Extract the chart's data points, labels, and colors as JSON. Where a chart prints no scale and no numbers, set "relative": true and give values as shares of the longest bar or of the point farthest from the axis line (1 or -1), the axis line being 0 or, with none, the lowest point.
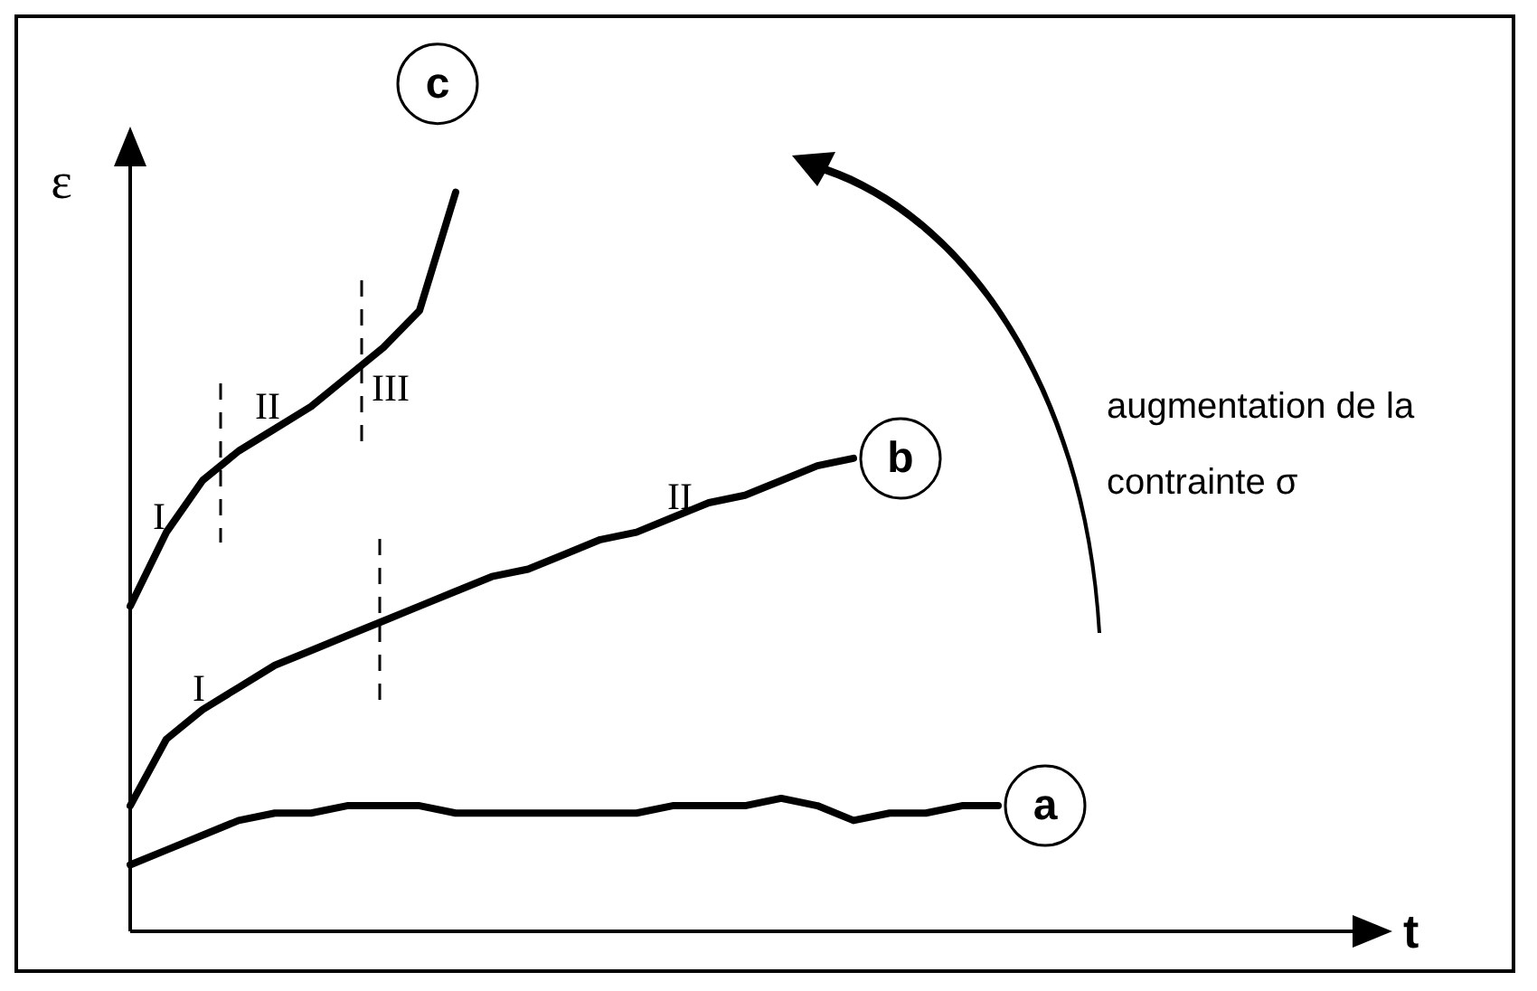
{
  "chart_data": {
    "type": "line",
    "relative": true,
    "xlabel": "t",
    "ylabel": "ε",
    "categories": [
      null,
      null,
      null,
      null,
      null,
      null,
      null,
      null,
      null,
      null,
      null,
      null,
      null,
      null,
      null,
      null,
      null,
      null,
      null,
      null,
      null,
      null,
      null,
      null,
      null,
      null,
      null,
      null,
      null,
      null,
      null,
      null,
      null,
      null,
      null
    ],
    "series": [
      {
        "name": "a",
        "color": "#000000",
        "values": [
          0.09,
          0.11,
          0.13,
          0.15,
          0.16,
          0.16,
          0.17,
          0.17,
          0.17,
          0.16,
          0.16,
          0.16,
          0.16,
          0.16,
          0.16,
          0.17,
          0.17,
          0.17,
          0.18,
          0.17,
          0.15,
          0.16,
          0.16,
          0.17,
          0.17,
          null,
          null,
          null,
          null,
          null,
          null,
          null,
          null,
          null,
          null
        ]
      },
      {
        "name": "b",
        "color": "#000000",
        "values": [
          0.17,
          0.26,
          0.3,
          0.33,
          0.36,
          0.38,
          0.4,
          0.42,
          0.44,
          0.46,
          0.48,
          0.49,
          0.51,
          0.53,
          0.54,
          0.56,
          0.58,
          0.59,
          0.61,
          0.63,
          0.64,
          null,
          null,
          null,
          null,
          null,
          null,
          null,
          null,
          null,
          null,
          null,
          null,
          null,
          null
        ]
      },
      {
        "name": "c",
        "color": "#000000",
        "values": [
          0.44,
          0.54,
          0.61,
          0.65,
          0.68,
          0.71,
          0.75,
          0.79,
          0.84,
          1.0,
          null,
          null,
          null,
          null,
          null,
          null,
          null,
          null,
          null,
          null,
          null,
          null,
          null,
          null,
          null,
          null,
          null,
          null,
          null,
          null,
          null,
          null,
          null,
          null,
          null
        ]
      }
    ],
    "annotations": [
      "I",
      "II",
      "III",
      "I",
      "II",
      "augmentation de la contrainte σ"
    ],
    "legend": false,
    "marker": "none",
    "line_style": "solid"
  }
}
